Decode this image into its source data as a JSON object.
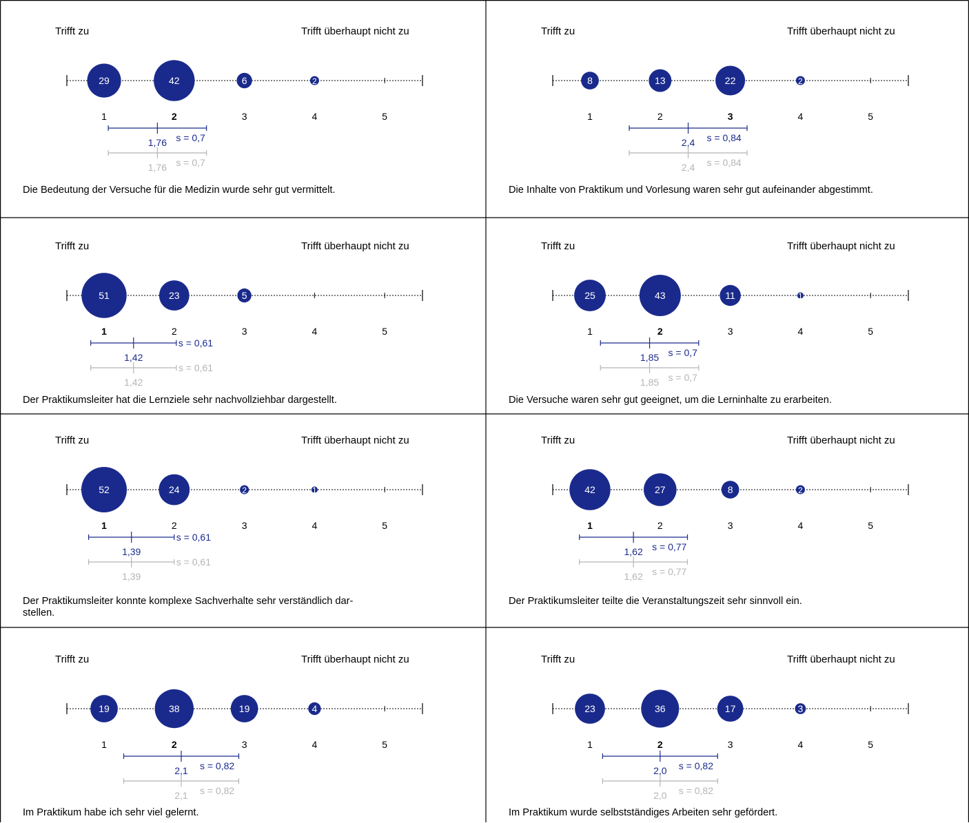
{
  "scale": {
    "left_label": "Trifft zu",
    "right_label": "Trifft überhaupt nicht zu",
    "ticks": [
      "1",
      "2",
      "3",
      "4",
      "5"
    ]
  },
  "colors": {
    "bubble": "#1a2a8c",
    "mean_line": "#1a2a8c",
    "reference_line": "#b5b5b5",
    "grid_border": "#000000",
    "text": "#000000"
  },
  "chart_data": [
    {
      "type": "bubble",
      "title": "Die Bedeutung der Versuche für die Medizin wurde sehr gut vermittelt.",
      "categories": [
        "1",
        "2",
        "3",
        "4",
        "5"
      ],
      "counts": [
        29,
        42,
        6,
        2,
        0
      ],
      "count_labels": [
        "29",
        "42",
        "6",
        "2",
        ""
      ],
      "mode": 2,
      "mean": 1.76,
      "mean_label": "1,76",
      "sd": 0.7,
      "sd_label": "s = 0,7",
      "reference_mean": 1.76,
      "reference_mean_label": "1,76",
      "reference_sd": 0.7,
      "reference_sd_label": "s = 0,7"
    },
    {
      "type": "bubble",
      "title": "Die Inhalte von Praktikum und Vorlesung waren sehr gut aufeinander abgestimmt.",
      "categories": [
        "1",
        "2",
        "3",
        "4",
        "5"
      ],
      "counts": [
        8,
        13,
        22,
        2,
        0
      ],
      "count_labels": [
        "8",
        "13",
        "22",
        "2",
        ""
      ],
      "mode": 3,
      "mean": 2.4,
      "mean_label": "2,4",
      "sd": 0.84,
      "sd_label": "s = 0,84",
      "reference_mean": 2.4,
      "reference_mean_label": "2,4",
      "reference_sd": 0.84,
      "reference_sd_label": "s = 0,84"
    },
    {
      "type": "bubble",
      "title": "Der Praktikumsleiter hat die Lernziele sehr nachvollziehbar dargestellt.",
      "categories": [
        "1",
        "2",
        "3",
        "4",
        "5"
      ],
      "counts": [
        51,
        23,
        5,
        0,
        0
      ],
      "count_labels": [
        "51",
        "23",
        "5",
        "",
        ""
      ],
      "mode": 1,
      "mean": 1.42,
      "mean_label": "1,42",
      "sd": 0.61,
      "sd_label": "s = 0,61",
      "reference_mean": 1.42,
      "reference_mean_label": "1,42",
      "reference_sd": 0.61,
      "reference_sd_label": "s = 0,61"
    },
    {
      "type": "bubble",
      "title": "Die Versuche waren sehr gut geeignet, um die Lerninhalte zu erarbeiten.",
      "categories": [
        "1",
        "2",
        "3",
        "4",
        "5"
      ],
      "counts": [
        25,
        43,
        11,
        1,
        0
      ],
      "count_labels": [
        "25",
        "43",
        "11",
        "1",
        ""
      ],
      "mode": 2,
      "mean": 1.85,
      "mean_label": "1,85",
      "sd": 0.7,
      "sd_label": "s = 0,7",
      "reference_mean": 1.85,
      "reference_mean_label": "1,85",
      "reference_sd": 0.7,
      "reference_sd_label": "s = 0,7"
    },
    {
      "type": "bubble",
      "title": "Der Praktikumsleiter konnte komplexe Sachverhalte sehr verständlich dar-stellen.",
      "categories": [
        "1",
        "2",
        "3",
        "4",
        "5"
      ],
      "counts": [
        52,
        24,
        2,
        1,
        0
      ],
      "count_labels": [
        "52",
        "24",
        "2",
        "1",
        ""
      ],
      "mode": 1,
      "mean": 1.39,
      "mean_label": "1,39",
      "sd": 0.61,
      "sd_label": "s = 0,61",
      "reference_mean": 1.39,
      "reference_mean_label": "1,39",
      "reference_sd": 0.61,
      "reference_sd_label": "s = 0,61"
    },
    {
      "type": "bubble",
      "title": "Der Praktikumsleiter teilte die Veranstaltungszeit sehr sinnvoll ein.",
      "categories": [
        "1",
        "2",
        "3",
        "4",
        "5"
      ],
      "counts": [
        42,
        27,
        8,
        2,
        0
      ],
      "count_labels": [
        "42",
        "27",
        "8",
        "2",
        ""
      ],
      "mode": 1,
      "mean": 1.62,
      "mean_label": "1,62",
      "sd": 0.77,
      "sd_label": "s = 0,77",
      "reference_mean": 1.62,
      "reference_mean_label": "1,62",
      "reference_sd": 0.77,
      "reference_sd_label": "s = 0,77"
    },
    {
      "type": "bubble",
      "title": "Im Praktikum habe ich sehr viel gelernt.",
      "categories": [
        "1",
        "2",
        "3",
        "4",
        "5"
      ],
      "counts": [
        19,
        38,
        19,
        4,
        0
      ],
      "count_labels": [
        "19",
        "38",
        "19",
        "4",
        ""
      ],
      "mode": 2,
      "mean": 2.1,
      "mean_label": "2,1",
      "sd": 0.82,
      "sd_label": "s = 0,82",
      "reference_mean": 2.1,
      "reference_mean_label": "2,1",
      "reference_sd": 0.82,
      "reference_sd_label": "s = 0,82"
    },
    {
      "type": "bubble",
      "title": "Im Praktikum wurde selbstständiges Arbeiten sehr gefördert.",
      "categories": [
        "1",
        "2",
        "3",
        "4",
        "5"
      ],
      "counts": [
        23,
        36,
        17,
        3,
        0
      ],
      "count_labels": [
        "23",
        "36",
        "17",
        "3",
        ""
      ],
      "mode": 2,
      "mean": 2.0,
      "mean_label": "2,0",
      "sd": 0.82,
      "sd_label": "s = 0,82",
      "reference_mean": 2.0,
      "reference_mean_label": "2,0",
      "reference_sd": 0.82,
      "reference_sd_label": "s = 0,82"
    }
  ]
}
